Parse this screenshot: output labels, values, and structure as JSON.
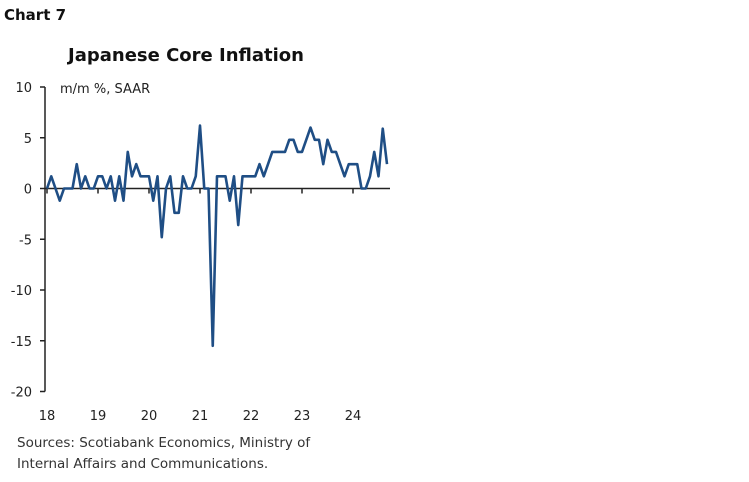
{
  "header": {
    "chart_number": "Chart 7"
  },
  "footer": {
    "sources_line1": "Sources: Scotiabank Economics, Ministry of",
    "sources_line2": "Internal Affairs and Communications."
  },
  "chart_data": {
    "type": "line",
    "title": "Japanese Core Inflation",
    "ylabel": "m/m %, SAAR",
    "xlabel": "",
    "ylim": [
      -20,
      10
    ],
    "yticks": [
      10,
      5,
      0,
      -5,
      -10,
      -15,
      -20
    ],
    "ytick_labels": [
      "10",
      "5",
      "0",
      "-5",
      "-10",
      "-15",
      "-20"
    ],
    "xticks": [
      "2018-01",
      "2019-01",
      "2020-01",
      "2021-01",
      "2022-01",
      "2023-01",
      "2024-01"
    ],
    "xtick_labels": [
      "18",
      "19",
      "20",
      "21",
      "22",
      "23",
      "24"
    ],
    "grid": false,
    "line_color": "#1f4e85",
    "series": [
      {
        "start": "2018-01",
        "frequency": "monthly",
        "values": [
          0,
          1.2,
          0,
          -1.2,
          0,
          0,
          0,
          2.4,
          0,
          1.2,
          0,
          0,
          1.2,
          1.2,
          0,
          1.2,
          -1.2,
          1.2,
          -1.2,
          3.6,
          1.2,
          2.4,
          1.2,
          1.2,
          1.2,
          -1.2,
          1.2,
          -4.8,
          0,
          1.2,
          -2.4,
          -2.4,
          1.2,
          0,
          0,
          1.2,
          6.2,
          0,
          0,
          -15.5,
          1.2,
          1.2,
          1.2,
          -1.2,
          1.2,
          -3.6,
          1.2,
          1.2,
          1.2,
          1.2,
          2.4,
          1.2,
          2.4,
          3.6,
          3.6,
          3.6,
          3.6,
          4.8,
          4.8,
          3.6,
          3.6,
          4.8,
          6.0,
          4.8,
          4.8,
          2.4,
          4.8,
          3.6,
          3.6,
          2.4,
          1.2,
          2.4,
          2.4,
          2.4,
          0,
          0,
          1.2,
          3.6,
          1.2,
          5.9,
          2.4
        ]
      }
    ]
  }
}
